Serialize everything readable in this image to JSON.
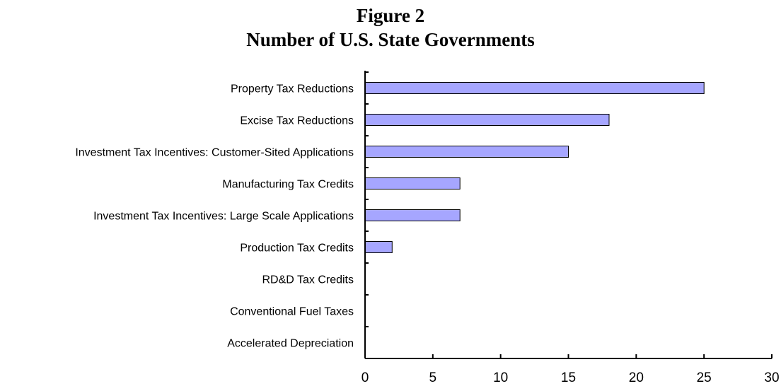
{
  "title_line1": "Figure 2",
  "title_line2": "Number of U.S. State Governments",
  "chart_data": {
    "type": "bar",
    "orientation": "horizontal",
    "categories": [
      "Property Tax Reductions",
      "Excise Tax Reductions",
      "Investment Tax Incentives: Customer-Sited Applications",
      "Manufacturing Tax Credits",
      "Investment Tax Incentives: Large Scale Applications",
      "Production Tax Credits",
      "RD&D Tax Credits",
      "Conventional Fuel Taxes",
      "Accelerated Depreciation"
    ],
    "values": [
      25,
      18,
      15,
      7,
      7,
      2,
      0,
      0,
      0
    ],
    "xlim": [
      0,
      30
    ],
    "xticks": [
      0,
      5,
      10,
      15,
      20,
      25,
      30
    ],
    "xticks_labels": [
      "0",
      "5",
      "10",
      "15",
      "20",
      "25",
      "30"
    ],
    "bar_color": "#a6a6ff",
    "bar_edge_color": "#000000",
    "grid": false,
    "legend": "none"
  }
}
